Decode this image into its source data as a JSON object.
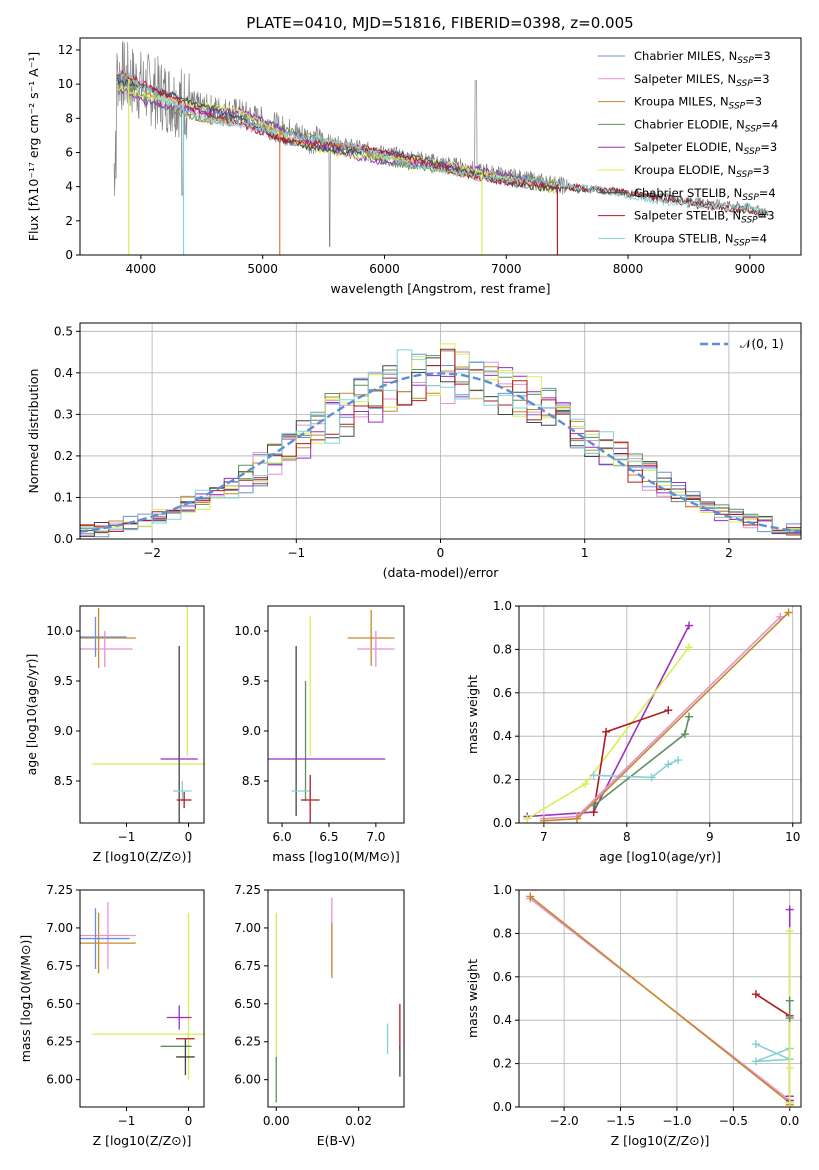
{
  "figure_title": "PLATE=0410, MJD=51816, FIBERID=0398, z=0.005",
  "colors": {
    "Chabrier MILES": "#6f8fd6",
    "Salpeter MILES": "#e592d0",
    "Kroupa MILES": "#c48a2b",
    "Chabrier ELODIE": "#5f8f5f",
    "Salpeter ELODIE": "#9b2fbf",
    "Kroupa ELODIE": "#d7ef55",
    "Chabrier STELIB": "#444444",
    "Salpeter STELIB": "#b01c22",
    "Kroupa STELIB": "#83d3d6",
    "orange_overlay": "#e8743a",
    "data": "#808080",
    "normal": "#5b8ed6"
  },
  "chart_data": [
    {
      "type": "line",
      "panel": "spectrum",
      "xlabel": "wavelength [Angstrom, rest frame]",
      "ylabel": "Flux [fλ10⁻¹⁷ erg cm⁻² s⁻¹ A⁻¹]",
      "xlim": [
        3500,
        9420
      ],
      "ylim": [
        0,
        12.7
      ],
      "xticks": [
        "4000",
        "5000",
        "6000",
        "7000",
        "8000",
        "9000"
      ],
      "yticks": [
        "0",
        "2",
        "4",
        "6",
        "8",
        "10",
        "12"
      ],
      "legend_position": "top-right",
      "legend": [
        "Chabrier MILES, N_SSP=3",
        "Salpeter MILES, N_SSP=3",
        "Kroupa MILES, N_SSP=3",
        "Chabrier ELODIE, N_SSP=4",
        "Salpeter ELODIE, N_SSP=3",
        "Kroupa ELODIE, N_SSP=3",
        "Chabrier STELIB, N_SSP=4",
        "Salpeter STELIB, N_SSP=3",
        "Kroupa STELIB, N_SSP=4"
      ],
      "continuum": [
        [
          3800,
          10.6
        ],
        [
          3900,
          10.3
        ],
        [
          4000,
          9.9
        ],
        [
          4200,
          9.3
        ],
        [
          4500,
          8.6
        ],
        [
          4800,
          8.3
        ],
        [
          5000,
          7.8
        ],
        [
          5200,
          7.2
        ],
        [
          5500,
          6.6
        ],
        [
          6000,
          5.9
        ],
        [
          6500,
          5.3
        ],
        [
          7000,
          4.6
        ],
        [
          7500,
          4.0
        ],
        [
          8000,
          3.6
        ],
        [
          8500,
          3.2
        ],
        [
          9000,
          2.8
        ],
        [
          9150,
          2.5
        ]
      ]
    },
    {
      "type": "line",
      "panel": "residual_histogram",
      "xlabel": "(data-model)/error",
      "ylabel": "Normed distribution",
      "xlim": [
        -2.5,
        2.5
      ],
      "ylim": [
        0,
        0.52
      ],
      "xticks": [
        "−2",
        "−1",
        "0",
        "1",
        "2"
      ],
      "yticks": [
        "0.0",
        "0.1",
        "0.2",
        "0.3",
        "0.4",
        "0.5"
      ],
      "legend": [
        "𝒩(0, 1)"
      ],
      "legend_position": "top-right",
      "grid": true
    },
    {
      "type": "scatter",
      "panel": "age_vs_Z",
      "xlabel": "Z [log10(Z/Z⊙)]",
      "ylabel": "age  [log10(age/yr)]",
      "xlim": [
        -1.75,
        0.25
      ],
      "ylim": [
        8.08,
        10.25
      ],
      "xticks": [
        "−1",
        "0"
      ],
      "yticks": [
        "8.5",
        "9.0",
        "9.5",
        "10.0"
      ],
      "points": [
        {
          "model": "Kroupa MILES",
          "x": -1.45,
          "y": 9.93,
          "ex": 0.6,
          "ey": 0.3
        },
        {
          "model": "Salpeter MILES",
          "x": -1.35,
          "y": 9.82,
          "ex": 0.45,
          "ey": 0.18
        },
        {
          "model": "Chabrier MILES",
          "x": -1.5,
          "y": 9.94,
          "ex": 0.5,
          "ey": 0.2
        },
        {
          "model": "Kroupa ELODIE",
          "x": -0.02,
          "y": 9.5,
          "ex": 0.0,
          "ey": 0.75
        },
        {
          "model": "Kroupa ELODIE",
          "x": -0.55,
          "y": 8.67,
          "ex": 1.0,
          "ey": 0.0
        },
        {
          "model": "Chabrier STELIB",
          "x": -0.15,
          "y": 8.9,
          "ex": 0.0,
          "ey": 0.95
        },
        {
          "model": "Salpeter ELODIE",
          "x": -0.15,
          "y": 8.72,
          "ex": 0.3,
          "ey": 0.0
        },
        {
          "model": "Kroupa STELIB",
          "x": -0.1,
          "y": 8.4,
          "ex": 0.15,
          "ey": 0.1
        },
        {
          "model": "Salpeter STELIB",
          "x": -0.07,
          "y": 8.31,
          "ex": 0.12,
          "ey": 0.08
        }
      ]
    },
    {
      "type": "scatter",
      "panel": "age_vs_mass",
      "xlabel": "mass [log10(M/M⊙)]",
      "xlim": [
        5.85,
        7.3
      ],
      "ylim": [
        8.08,
        10.25
      ],
      "xticks": [
        "6.0",
        "6.5",
        "7.0"
      ],
      "yticks": [
        "8.5",
        "9.0",
        "9.5",
        "10.0"
      ],
      "points": [
        {
          "model": "Kroupa MILES",
          "x": 6.95,
          "y": 9.93,
          "ex": 0.25,
          "ey": 0.28
        },
        {
          "model": "Salpeter MILES",
          "x": 7.0,
          "y": 9.82,
          "ex": 0.2,
          "ey": 0.18
        },
        {
          "model": "Chabrier STELIB",
          "x": 6.15,
          "y": 9.0,
          "ex": 0.0,
          "ey": 0.85
        },
        {
          "model": "Kroupa ELODIE",
          "x": 6.3,
          "y": 9.45,
          "ex": 0.0,
          "ey": 0.7
        },
        {
          "model": "Chabrier ELODIE",
          "x": 6.25,
          "y": 8.9,
          "ex": 0.0,
          "ey": 0.6
        },
        {
          "model": "Salpeter ELODIE",
          "x": 6.45,
          "y": 8.72,
          "ex": 0.65,
          "ey": 0.0
        },
        {
          "model": "Kroupa STELIB",
          "x": 6.2,
          "y": 8.4,
          "ex": 0.1,
          "ey": 0.0
        },
        {
          "model": "Salpeter STELIB",
          "x": 6.3,
          "y": 8.31,
          "ex": 0.1,
          "ey": 0.25
        }
      ]
    },
    {
      "type": "line",
      "panel": "mass_weight_vs_age",
      "xlabel": "age  [log10(age/yr)]",
      "ylabel": "mass weight",
      "xlim": [
        6.7,
        10.1
      ],
      "ylim": [
        0,
        1
      ],
      "xticks": [
        "7",
        "8",
        "9",
        "10"
      ],
      "yticks": [
        "0.0",
        "0.2",
        "0.4",
        "0.6",
        "0.8",
        "1.0"
      ],
      "grid": true,
      "series": [
        {
          "model": "Salpeter ELODIE",
          "x": [
            6.8,
            7.6,
            8.75
          ],
          "y": [
            0.03,
            0.05,
            0.91
          ]
        },
        {
          "model": "Kroupa ELODIE",
          "x": [
            6.8,
            7.5,
            8.75
          ],
          "y": [
            0.02,
            0.18,
            0.81
          ]
        },
        {
          "model": "Salpeter STELIB",
          "x": [
            7.6,
            7.75,
            8.5
          ],
          "y": [
            0.05,
            0.42,
            0.52
          ]
        },
        {
          "model": "Chabrier ELODIE",
          "x": [
            7.6,
            8.7,
            8.75
          ],
          "y": [
            0.08,
            0.41,
            0.49
          ]
        },
        {
          "model": "Kroupa STELIB",
          "x": [
            7.6,
            8.3,
            8.5,
            8.62
          ],
          "y": [
            0.22,
            0.21,
            0.27,
            0.29
          ]
        },
        {
          "model": "Salpeter MILES",
          "x": [
            7.0,
            7.4,
            9.85
          ],
          "y": [
            0.02,
            0.03,
            0.95
          ]
        },
        {
          "model": "Kroupa MILES",
          "x": [
            7.0,
            7.4,
            9.95
          ],
          "y": [
            0.01,
            0.02,
            0.97
          ]
        }
      ]
    },
    {
      "type": "scatter",
      "panel": "mass_vs_Z",
      "xlabel": "Z [log10(Z/Z⊙)]",
      "ylabel": "mass [log10(M/M⊙)]",
      "xlim": [
        -1.75,
        0.25
      ],
      "ylim": [
        5.82,
        7.25
      ],
      "xticks": [
        "−1",
        "0"
      ],
      "yticks": [
        "6.00",
        "6.25",
        "6.50",
        "6.75",
        "7.00",
        "7.25"
      ],
      "points": [
        {
          "model": "Kroupa MILES",
          "x": -1.45,
          "y": 6.9,
          "ex": 0.6,
          "ey": 0.2
        },
        {
          "model": "Salpeter MILES",
          "x": -1.3,
          "y": 6.95,
          "ex": 0.45,
          "ey": 0.22
        },
        {
          "model": "Chabrier MILES",
          "x": -1.5,
          "y": 6.93,
          "ex": 0.55,
          "ey": 0.2
        },
        {
          "model": "Kroupa ELODIE",
          "x": 0.0,
          "y": 6.55,
          "ex": 0.0,
          "ey": 0.55
        },
        {
          "model": "Kroupa ELODIE",
          "x": -0.6,
          "y": 6.3,
          "ex": 0.95,
          "ey": 0.0
        },
        {
          "model": "Salpeter ELODIE",
          "x": -0.15,
          "y": 6.41,
          "ex": 0.2,
          "ey": 0.08
        },
        {
          "model": "Salpeter STELIB",
          "x": -0.05,
          "y": 6.27,
          "ex": 0.15,
          "ey": 0.0
        },
        {
          "model": "Chabrier ELODIE",
          "x": -0.2,
          "y": 6.22,
          "ex": 0.25,
          "ey": 0.0
        },
        {
          "model": "Chabrier STELIB",
          "x": -0.05,
          "y": 6.15,
          "ex": 0.15,
          "ey": 0.12
        }
      ]
    },
    {
      "type": "scatter",
      "panel": "mass_vs_EBV",
      "xlabel": "E(B-V)",
      "xlim": [
        -0.002,
        0.031
      ],
      "ylim": [
        5.82,
        7.25
      ],
      "xticks": [
        "0.00",
        "0.02"
      ],
      "yticks": [
        "6.00",
        "6.25",
        "6.50",
        "6.75",
        "7.00",
        "7.25"
      ],
      "points": [
        {
          "model": "Kroupa ELODIE",
          "x": 0.0,
          "y": 6.6,
          "ex": 0.0,
          "ey": 0.5
        },
        {
          "model": "Chabrier ELODIE",
          "x": 0.0,
          "y": 6.0,
          "ex": 0.0,
          "ey": 0.15
        },
        {
          "model": "Salpeter MILES",
          "x": 0.0135,
          "y": 6.95,
          "ex": 0.0,
          "ey": 0.25
        },
        {
          "model": "Kroupa MILES",
          "x": 0.0135,
          "y": 6.85,
          "ex": 0.0,
          "ey": 0.18
        },
        {
          "model": "Kroupa STELIB",
          "x": 0.027,
          "y": 6.27,
          "ex": 0.0,
          "ey": 0.1
        },
        {
          "model": "Salpeter STELIB",
          "x": 0.03,
          "y": 6.35,
          "ex": 0.0,
          "ey": 0.15
        },
        {
          "model": "Chabrier STELIB",
          "x": 0.03,
          "y": 6.12,
          "ex": 0.0,
          "ey": 0.1
        }
      ]
    },
    {
      "type": "line",
      "panel": "mass_weight_vs_Z",
      "xlabel": "Z [log10(Z/Z⊙)]",
      "ylabel": "mass weight",
      "xlim": [
        -2.4,
        0.1
      ],
      "ylim": [
        0,
        1
      ],
      "xticks": [
        "−2.0",
        "−1.5",
        "−1.0",
        "−0.5",
        "0.0"
      ],
      "yticks": [
        "0.0",
        "0.2",
        "0.4",
        "0.6",
        "0.8",
        "1.0"
      ],
      "grid": true,
      "series": [
        {
          "model": "Salpeter MILES",
          "x": [
            -2.3,
            0.0,
            0.0
          ],
          "y": [
            0.96,
            0.03,
            0.01
          ]
        },
        {
          "model": "Kroupa MILES",
          "x": [
            -2.3,
            0.0,
            0.0
          ],
          "y": [
            0.97,
            0.02,
            0.01
          ]
        },
        {
          "model": "Salpeter STELIB",
          "x": [
            -0.3,
            0.0,
            0.0
          ],
          "y": [
            0.52,
            0.42,
            0.05
          ]
        },
        {
          "model": "Kroupa STELIB",
          "x": [
            -0.3,
            0.0,
            -0.3,
            0.0
          ],
          "y": [
            0.29,
            0.22,
            0.21,
            0.27
          ]
        },
        {
          "model": "Salpeter ELODIE",
          "x": [
            0.0,
            0.0,
            0.0
          ],
          "y": [
            0.91,
            0.05,
            0.03
          ]
        },
        {
          "model": "Kroupa ELODIE",
          "x": [
            0.0,
            0.0,
            0.0
          ],
          "y": [
            0.81,
            0.18,
            0.02
          ]
        },
        {
          "model": "Chabrier ELODIE",
          "x": [
            0.0,
            0.0
          ],
          "y": [
            0.49,
            0.41
          ]
        }
      ]
    }
  ]
}
